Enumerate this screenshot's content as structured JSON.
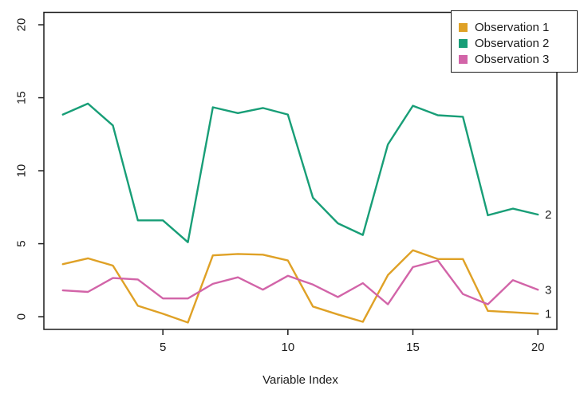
{
  "chart_data": {
    "type": "line",
    "title": "",
    "xlabel": "Variable Index",
    "ylabel": "",
    "grid": false,
    "background": "#ffffff",
    "axis_color": "#1b1b1b",
    "legend_position": "topright",
    "xlim": [
      0.24,
      20.76
    ],
    "ylim": [
      -0.87,
      20.85
    ],
    "xticks": [
      5,
      10,
      15,
      20
    ],
    "yticks": [
      0,
      5,
      10,
      15,
      20
    ],
    "x": [
      1,
      2,
      3,
      4,
      5,
      6,
      7,
      8,
      9,
      10,
      11,
      12,
      13,
      14,
      15,
      16,
      17,
      18,
      19,
      20
    ],
    "series": [
      {
        "name": "Observation 1",
        "end_label": "1",
        "color": "#DFA126",
        "values": [
          3.6,
          4.0,
          3.5,
          0.75,
          0.2,
          -0.4,
          4.2,
          4.3,
          4.25,
          3.85,
          0.7,
          0.15,
          -0.35,
          2.85,
          4.55,
          3.95,
          3.95,
          0.4,
          0.3,
          0.2
        ]
      },
      {
        "name": "Observation 2",
        "end_label": "2",
        "color": "#189E77",
        "values": [
          13.85,
          14.6,
          13.1,
          6.6,
          6.6,
          5.1,
          14.35,
          13.95,
          14.3,
          13.85,
          8.15,
          6.4,
          5.6,
          11.8,
          14.45,
          13.8,
          13.7,
          6.95,
          7.4,
          7.0
        ]
      },
      {
        "name": "Observation 3",
        "end_label": "3",
        "color": "#D264A8",
        "values": [
          1.8,
          1.7,
          2.65,
          2.55,
          1.25,
          1.25,
          2.25,
          2.7,
          1.85,
          2.8,
          2.2,
          1.35,
          2.3,
          0.85,
          3.4,
          3.85,
          1.55,
          0.85,
          2.5,
          1.85
        ]
      }
    ]
  }
}
